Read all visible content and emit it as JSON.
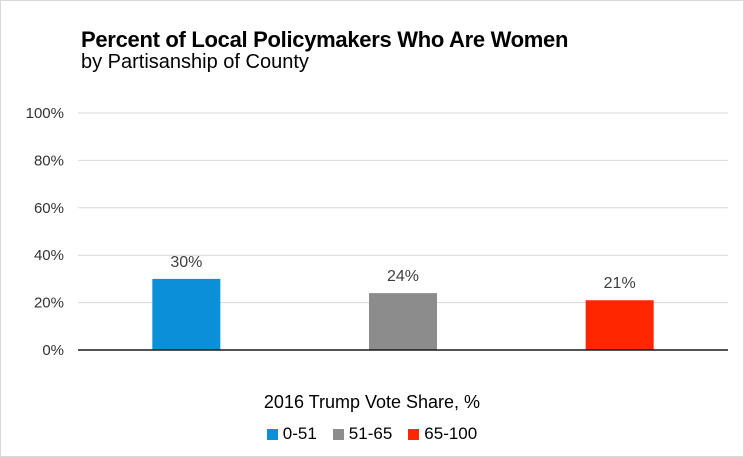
{
  "chart_data": {
    "type": "bar",
    "title": "Percent of Local Policymakers Who Are Women",
    "subtitle": "by Partisanship of County",
    "xlabel": "2016 Trump Vote Share, %",
    "ylabel": "",
    "categories": [
      "0-51",
      "51-65",
      "65-100"
    ],
    "values": [
      30,
      24,
      21
    ],
    "data_labels": [
      "30%",
      "24%",
      "21%"
    ],
    "colors": [
      "#0a8fd8",
      "#8c8c8c",
      "#ff2600"
    ],
    "ylim": [
      0,
      100
    ],
    "yticks": [
      0,
      20,
      40,
      60,
      80,
      100
    ],
    "ytick_labels": [
      "0%",
      "20%",
      "40%",
      "60%",
      "80%",
      "100%"
    ],
    "grid": true,
    "legend": {
      "position": "bottom",
      "entries": [
        "0-51",
        "51-65",
        "65-100"
      ]
    }
  }
}
